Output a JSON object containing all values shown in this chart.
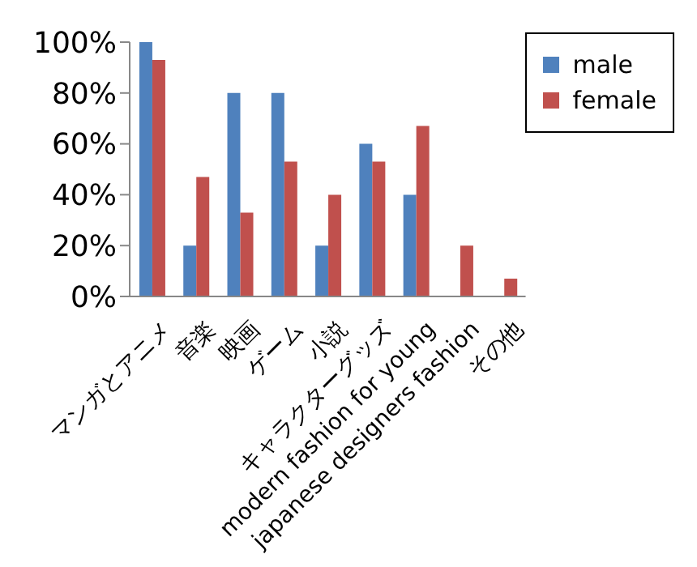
{
  "chart_data": {
    "type": "bar",
    "categories": [
      "マンガとアニメ",
      "音楽",
      "映画",
      "ゲーム",
      "小説",
      "キャラクターグッズ",
      "modern fashion for young",
      "japanese designers fashion",
      "その他"
    ],
    "series": [
      {
        "name": "male",
        "color": "#4f81bd",
        "values": [
          100,
          20,
          80,
          80,
          20,
          60,
          40,
          0,
          0
        ]
      },
      {
        "name": "female",
        "color": "#c0504d",
        "values": [
          93,
          47,
          33,
          53,
          40,
          53,
          67,
          20,
          7
        ]
      }
    ],
    "ylim": [
      0,
      100
    ],
    "yticks": [
      {
        "value": 0,
        "label": "0%"
      },
      {
        "value": 20,
        "label": "20%"
      },
      {
        "value": 40,
        "label": "40%"
      },
      {
        "value": 60,
        "label": "60%"
      },
      {
        "value": 80,
        "label": "80%"
      },
      {
        "value": 100,
        "label": "100%"
      }
    ],
    "grid": false,
    "legend": "top right"
  }
}
